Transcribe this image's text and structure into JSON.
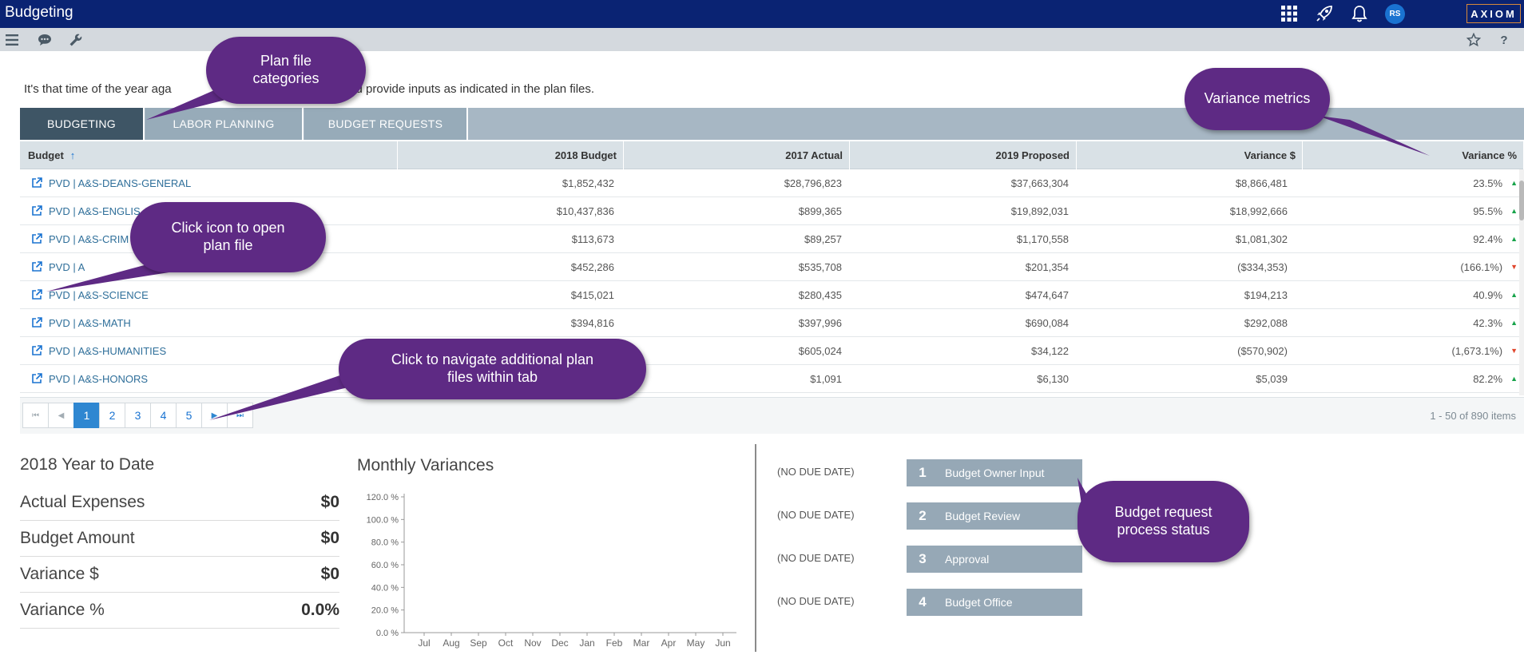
{
  "app": {
    "title": "Budgeting",
    "brand": "AXIOM",
    "user_initials": "RS"
  },
  "topbar": {
    "icons": [
      "apps-grid-icon",
      "rocket-icon",
      "bell-icon"
    ]
  },
  "subbar": {
    "icons": [
      "menu-icon",
      "chat-icon",
      "wrench-icon",
      "star-icon",
      "help-icon"
    ],
    "help_label": "?"
  },
  "intro_text": "It's that time of the year aga                                         below and provide inputs as indicated in the plan files.",
  "tabs": [
    {
      "label": "BUDGETING",
      "active": true
    },
    {
      "label": "LABOR PLANNING",
      "active": false
    },
    {
      "label": "BUDGET REQUESTS",
      "active": false
    }
  ],
  "table": {
    "columns": [
      "Budget",
      "2018 Budget",
      "2017 Actual",
      "2019 Proposed",
      "Variance $",
      "Variance %"
    ],
    "rows": [
      {
        "name": "PVD | A&S-DEANS-GENERAL",
        "b2018": "$1,852,432",
        "a2017": "$28,796,823",
        "p2019": "$37,663,304",
        "var_usd": "$8,866,481",
        "var_pct": "23.5%",
        "trend": "up"
      },
      {
        "name": "PVD | A&S-ENGLIS",
        "b2018": "$10,437,836",
        "a2017": "$899,365",
        "p2019": "$19,892,031",
        "var_usd": "$18,992,666",
        "var_pct": "95.5%",
        "trend": "up"
      },
      {
        "name": "PVD | A&S-CRIM",
        "b2018": "$113,673",
        "a2017": "$89,257",
        "p2019": "$1,170,558",
        "var_usd": "$1,081,302",
        "var_pct": "92.4%",
        "trend": "up"
      },
      {
        "name": "PVD | A",
        "b2018": "$452,286",
        "a2017": "$535,708",
        "p2019": "$201,354",
        "var_usd": "($334,353)",
        "var_pct": "(166.1%)",
        "trend": "down"
      },
      {
        "name": "PVD | A&S-SCIENCE",
        "b2018": "$415,021",
        "a2017": "$280,435",
        "p2019": "$474,647",
        "var_usd": "$194,213",
        "var_pct": "40.9%",
        "trend": "up"
      },
      {
        "name": "PVD | A&S-MATH",
        "b2018": "$394,816",
        "a2017": "$397,996",
        "p2019": "$690,084",
        "var_usd": "$292,088",
        "var_pct": "42.3%",
        "trend": "up"
      },
      {
        "name": "PVD | A&S-HUMANITIES",
        "b2018": "",
        "a2017": "$605,024",
        "p2019": "$34,122",
        "var_usd": "($570,902)",
        "var_pct": "(1,673.1%)",
        "trend": "down"
      },
      {
        "name": "PVD | A&S-HONORS",
        "b2018": "",
        "a2017": "$1,091",
        "p2019": "$6,130",
        "var_usd": "$5,039",
        "var_pct": "82.2%",
        "trend": "up"
      }
    ]
  },
  "pager": {
    "first": "⏮",
    "prev": "◀",
    "pages": [
      "1",
      "2",
      "3",
      "4",
      "5"
    ],
    "active_page": "1",
    "next": "▶",
    "last": "⏭",
    "items_text": "1 - 50 of 890 items"
  },
  "ytd": {
    "title": "2018 Year to Date",
    "rows": [
      {
        "label": "Actual Expenses",
        "value": "$0"
      },
      {
        "label": "Budget Amount",
        "value": "$0"
      },
      {
        "label": "Variance $",
        "value": "$0"
      },
      {
        "label": "Variance %",
        "value": "0.0%"
      }
    ]
  },
  "chart_data": {
    "type": "bar",
    "title": "Monthly Variances",
    "categories": [
      "Jul",
      "Aug",
      "Sep",
      "Oct",
      "Nov",
      "Dec",
      "Jan",
      "Feb",
      "Mar",
      "Apr",
      "May",
      "Jun"
    ],
    "values": [
      0,
      0,
      0,
      0,
      0,
      0,
      0,
      0,
      0,
      0,
      0,
      0
    ],
    "ylim": [
      0,
      120
    ],
    "yticks": [
      "0.0 %",
      "20.0 %",
      "40.0 %",
      "60.0 %",
      "80.0 %",
      "100.0 %",
      "120.0 %"
    ],
    "grid": false,
    "xlabel": "",
    "ylabel": ""
  },
  "steps": [
    {
      "due": "(NO DUE DATE)",
      "num": "1",
      "label": "Budget Owner Input"
    },
    {
      "due": "(NO DUE DATE)",
      "num": "2",
      "label": "Budget Review"
    },
    {
      "due": "(NO DUE DATE)",
      "num": "3",
      "label": "Approval"
    },
    {
      "due": "(NO DUE DATE)",
      "num": "4",
      "label": "Budget Office"
    }
  ],
  "callouts": {
    "plan_categories": "Plan file categories",
    "variance_metrics": "Variance metrics",
    "open_icon": "Click icon to open plan file",
    "navigate": "Click to navigate additional plan files within tab",
    "process_status": "Budget request process status"
  }
}
